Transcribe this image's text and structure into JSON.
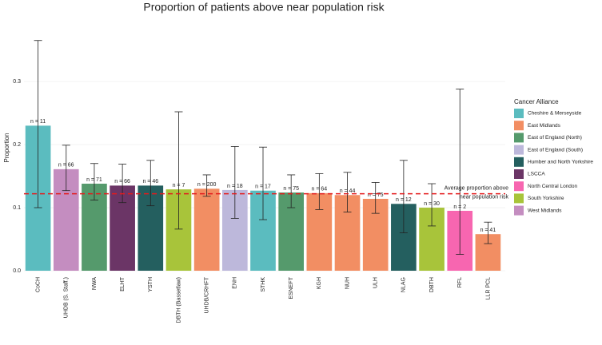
{
  "chart_data": {
    "type": "bar",
    "title": "Proportion of patients above near population risk",
    "y_label": "Proportion",
    "categories": [
      "CoCH",
      "UHDB (S. Staff.)",
      "NWA",
      "ELHT",
      "YSTH",
      "DBTH (Bassetlaw)",
      "UHDB/CRHFT",
      "ENH",
      "STHK",
      "ESNEFT",
      "KGH",
      "NUH",
      "ULH",
      "NLAG",
      "DBTH",
      "RFL",
      "LLR PCL"
    ],
    "values": [
      0.23,
      0.161,
      0.138,
      0.135,
      0.135,
      0.129,
      0.13,
      0.128,
      0.127,
      0.124,
      0.123,
      0.12,
      0.114,
      0.106,
      0.1,
      0.095,
      0.058
    ],
    "error_low": [
      0.1,
      0.127,
      0.112,
      0.108,
      0.103,
      0.066,
      0.118,
      0.083,
      0.081,
      0.1,
      0.097,
      0.093,
      0.091,
      0.06,
      0.071,
      0.026,
      0.043
    ],
    "error_high": [
      0.365,
      0.199,
      0.17,
      0.169,
      0.175,
      0.252,
      0.152,
      0.197,
      0.196,
      0.152,
      0.154,
      0.156,
      0.14,
      0.175,
      0.138,
      0.288,
      0.077
    ],
    "n_labels": [
      "n = 11",
      "n = 66",
      "n = 71",
      "n = 66",
      "n = 46",
      "n = 7",
      "n = 200",
      "n = 18",
      "n = 17",
      "n = 75",
      "n = 64",
      "n = 44",
      "n = 75",
      "n = 12",
      "n = 30",
      "n = 2",
      "n = 41"
    ],
    "colors": [
      "#5bbcbf",
      "#c48dc0",
      "#559a6c",
      "#6b3566",
      "#245f5f",
      "#a8c43a",
      "#f28e63",
      "#bdb8db",
      "#5bbcbf",
      "#559a6c",
      "#f28e63",
      "#f28e63",
      "#f28e63",
      "#245f5f",
      "#a8c43a",
      "#f766b0",
      "#f28e63"
    ],
    "ylim": [
      0,
      0.39
    ],
    "yticks": [
      {
        "value": 0,
        "label": "0.0"
      },
      0.1,
      0.2,
      0.3
    ],
    "grid": true,
    "reference_line": {
      "value": 0.122,
      "color": "#e41a1c",
      "label": [
        "Average proportion above",
        "near population risk"
      ]
    },
    "legend": {
      "title": "Cancer Alliance",
      "position": "right",
      "items": [
        {
          "name": "Cheshire & Merseyside",
          "color": "#5bbcbf"
        },
        {
          "name": "East Midlands",
          "color": "#f28e63"
        },
        {
          "name": "East of England (North)",
          "color": "#559a6c"
        },
        {
          "name": "East of England (South)",
          "color": "#bdb8db"
        },
        {
          "name": "Humber and North Yorkshire",
          "color": "#245f5f"
        },
        {
          "name": "LSCCA",
          "color": "#6b3566"
        },
        {
          "name": "North Central London",
          "color": "#f766b0"
        },
        {
          "name": "South Yorkshire",
          "color": "#a8c43a"
        },
        {
          "name": "West Midlands",
          "color": "#c48dc0"
        }
      ]
    }
  }
}
